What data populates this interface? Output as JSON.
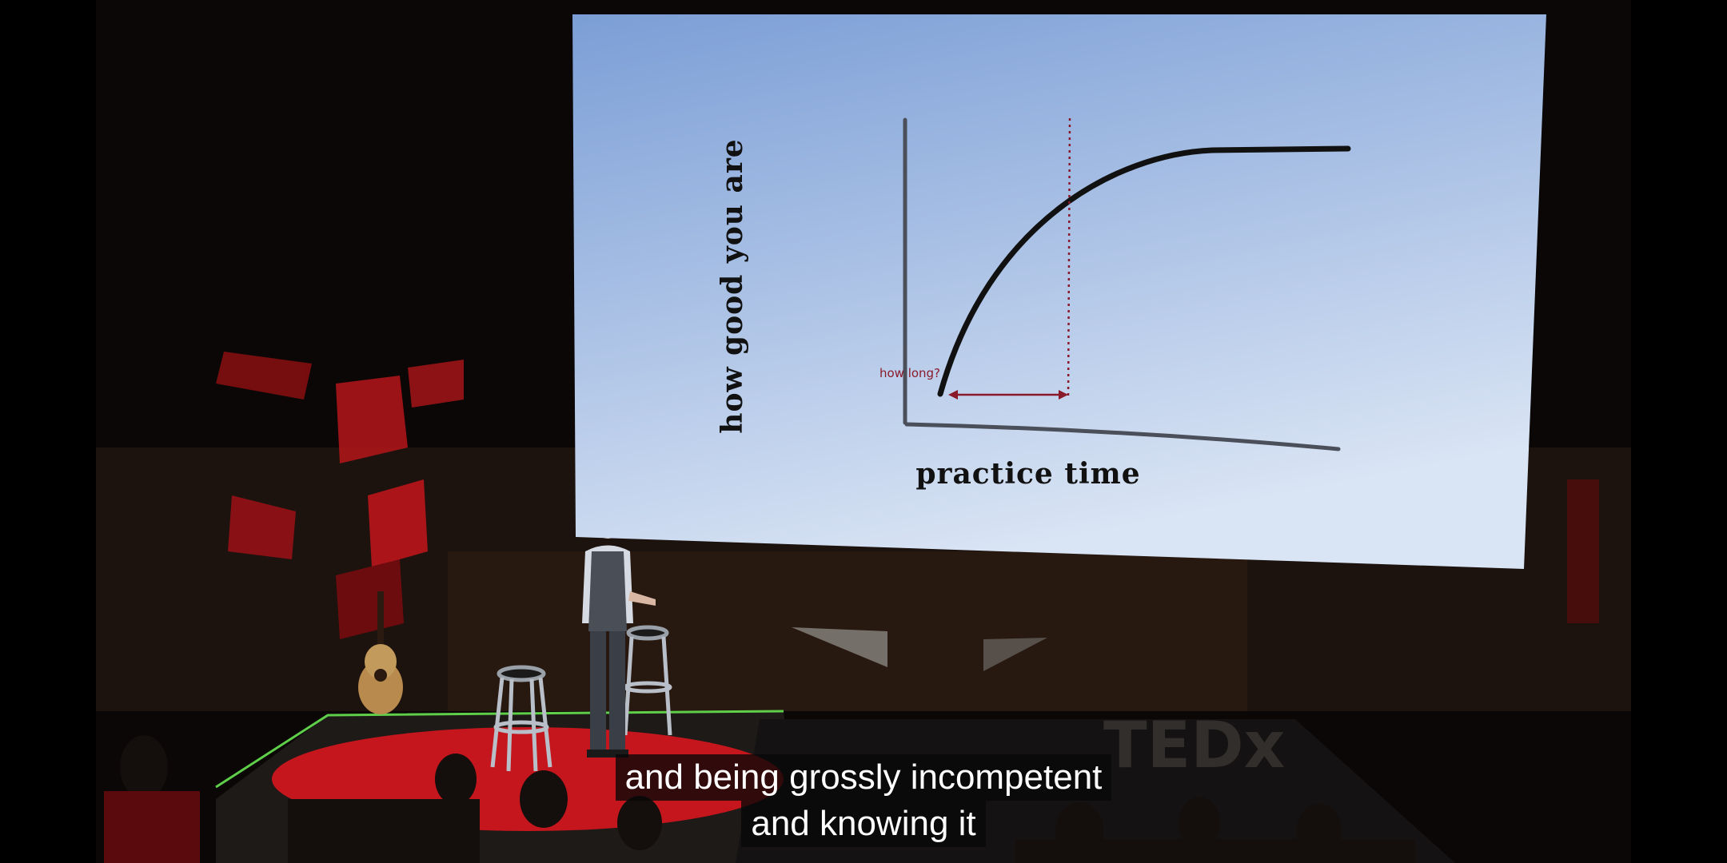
{
  "slide": {
    "y_label": "how good you are",
    "x_label": "practice time",
    "annotation": "how long?"
  },
  "captions": {
    "line1": "and being grossly incompetent",
    "line2": "and knowing it"
  },
  "backdrop_text": "TEDx",
  "colors": {
    "slide_top": "#7b9ed6",
    "slide_bottom": "#d9e4f4",
    "annotation": "#8a1a2a",
    "stage_red": "#c4161c"
  }
}
